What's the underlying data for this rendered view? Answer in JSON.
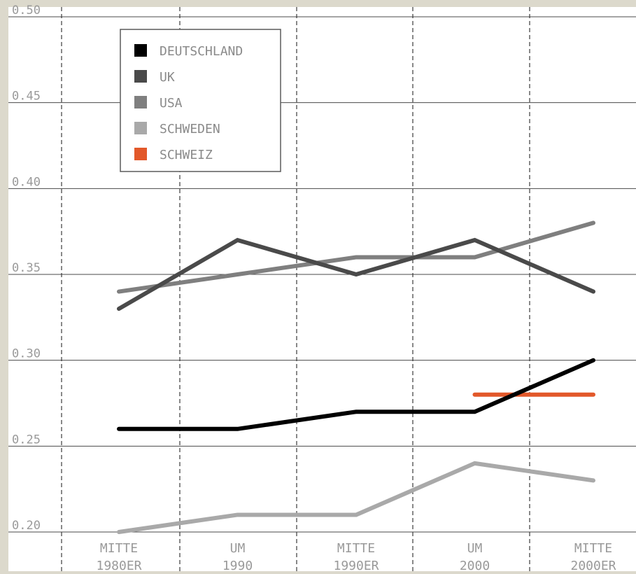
{
  "chart_data": {
    "type": "line",
    "categories": [
      [
        "MITTE",
        "1980ER"
      ],
      [
        "UM",
        "1990"
      ],
      [
        "MITTE",
        "1990ER"
      ],
      [
        "UM",
        "2000"
      ],
      [
        "MITTE",
        "2000ER"
      ]
    ],
    "ylim": [
      0.2,
      0.5
    ],
    "yticks": [
      "0.50",
      "0.45",
      "0.40",
      "0.35",
      "0.30",
      "0.25",
      "0.20"
    ],
    "grid": true,
    "legend_position": "top-left",
    "series": [
      {
        "name": "DEUTSCHLAND",
        "color": "#000000",
        "values": [
          0.26,
          0.26,
          0.27,
          0.27,
          0.3
        ]
      },
      {
        "name": "UK",
        "color": "#4a4a4a",
        "values": [
          0.33,
          0.37,
          0.35,
          0.37,
          0.34
        ]
      },
      {
        "name": "USA",
        "color": "#7f7f7f",
        "values": [
          0.34,
          0.35,
          0.36,
          0.36,
          0.38
        ]
      },
      {
        "name": "SCHWEDEN",
        "color": "#a9a9a9",
        "values": [
          0.2,
          0.21,
          0.21,
          0.24,
          0.23
        ]
      },
      {
        "name": "SCHWEIZ",
        "color": "#e2582a",
        "values": [
          null,
          null,
          null,
          0.28,
          0.28
        ]
      }
    ],
    "plot_background": "#ffffff",
    "page_background": "#dcd9cc",
    "tick_label_color": "#9a9a9a",
    "legend_label_color": "#8a8a8a"
  }
}
